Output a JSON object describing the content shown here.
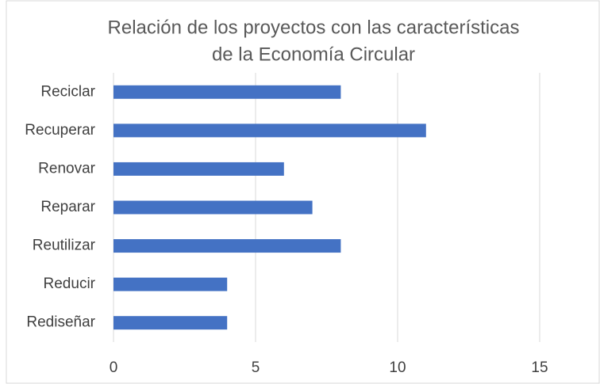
{
  "chart_data": {
    "type": "barh",
    "title": [
      "Relación de los proyectos con las características",
      "de la Economía Circular"
    ],
    "categories": [
      "Reciclar",
      "Recuperar",
      "Renovar",
      "Reparar",
      "Reutilizar",
      "Reducir",
      "Rediseñar"
    ],
    "values": [
      8,
      11,
      6,
      7,
      8,
      4,
      4
    ],
    "color": "#4472c4",
    "xlim": [
      0,
      15
    ],
    "xticks": [
      0,
      5,
      10,
      15
    ],
    "grid": true
  }
}
